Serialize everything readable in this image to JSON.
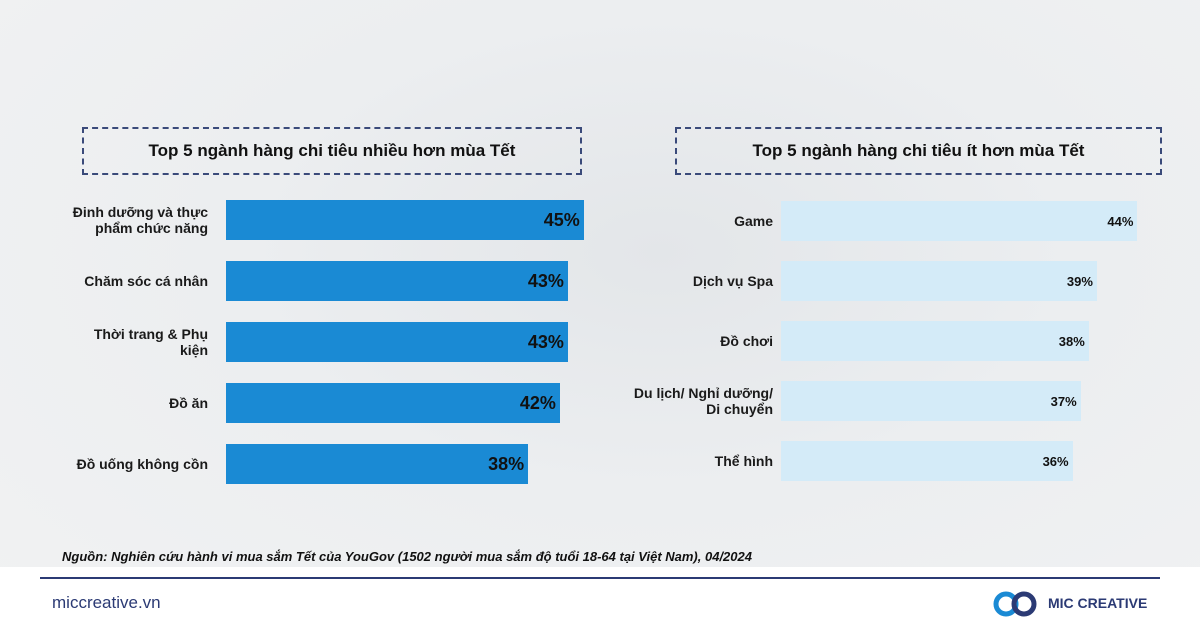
{
  "chart_data": [
    {
      "type": "bar",
      "orientation": "horizontal",
      "title": "Top 5 ngành hàng chi tiêu nhiều hơn mùa Tết",
      "color": "#1a8ad4",
      "categories": [
        "Đinh dưỡng và thực phẩm chức năng",
        "Chăm sóc cá nhân",
        "Thời trang & Phụ kiện",
        "Đồ ăn",
        "Đồ uống không cồn"
      ],
      "values": [
        45,
        43,
        43,
        42,
        38
      ],
      "value_labels": [
        "45%",
        "43%",
        "43%",
        "42%",
        "38%"
      ]
    },
    {
      "type": "bar",
      "orientation": "horizontal",
      "title": "Top 5 ngành hàng chi tiêu ít hơn mùa Tết",
      "color": "#d4ebf8",
      "categories": [
        "Game",
        "Dịch vụ Spa",
        "Đồ chơi",
        "Du lịch/ Nghỉ dưỡng/ Di chuyển",
        "Thể hình"
      ],
      "values": [
        44,
        39,
        38,
        37,
        36
      ],
      "value_labels": [
        "44%",
        "39%",
        "38%",
        "37%",
        "36%"
      ]
    }
  ],
  "source": "Nguồn: Nghiên cứu hành vi mua sắm Tết của YouGov (1502 người mua sắm độ tuổi 18-64 tại Việt Nam), 04/2024",
  "footer": {
    "website": "miccreative.vn",
    "brand": "MIC CREATIVE"
  }
}
